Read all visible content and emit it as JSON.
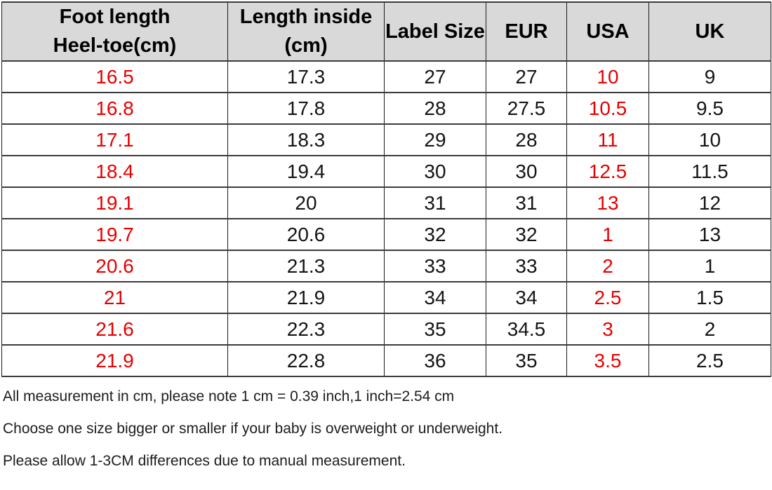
{
  "table": {
    "columns": [
      {
        "line1": "Foot length",
        "line2": "Heel-toe(cm)"
      },
      {
        "line1": "Length inside",
        "line2": "(cm)"
      },
      {
        "line1": "Label Size",
        "line2": ""
      },
      {
        "line1": "EUR",
        "line2": ""
      },
      {
        "line1": "USA",
        "line2": ""
      },
      {
        "line1": "UK",
        "line2": ""
      }
    ],
    "red_value_columns": [
      0,
      4
    ],
    "rows": [
      [
        "16.5",
        "17.3",
        "27",
        "27",
        "10",
        "9"
      ],
      [
        "16.8",
        "17.8",
        "28",
        "27.5",
        "10.5",
        "9.5"
      ],
      [
        "17.1",
        "18.3",
        "29",
        "28",
        "11",
        "10"
      ],
      [
        "18.4",
        "19.4",
        "30",
        "30",
        "12.5",
        "11.5"
      ],
      [
        "19.1",
        "20",
        "31",
        "31",
        "13",
        "12"
      ],
      [
        "19.7",
        "20.6",
        "32",
        "32",
        "1",
        "13"
      ],
      [
        "20.6",
        "21.3",
        "33",
        "33",
        "2",
        "1"
      ],
      [
        "21",
        "21.9",
        "34",
        "34",
        "2.5",
        "1.5"
      ],
      [
        "21.6",
        "22.3",
        "35",
        "34.5",
        "3",
        "2"
      ],
      [
        "21.9",
        "22.8",
        "36",
        "35",
        "3.5",
        "2.5"
      ]
    ]
  },
  "notes": [
    "All measurement in cm, please note 1 cm = 0.39 inch,1 inch=2.54 cm",
    "Choose one size bigger or smaller if your baby is overweight or underweight.",
    "Please allow 1-3CM differences due to manual measurement."
  ],
  "colors": {
    "red_text": "#e60000",
    "header_bg": "#d9d9d9",
    "horizontal_border": "#3b3b3b",
    "vertical_border": "#1a1a1a",
    "body_text": "#141414",
    "page_bg": "#ffffff"
  }
}
